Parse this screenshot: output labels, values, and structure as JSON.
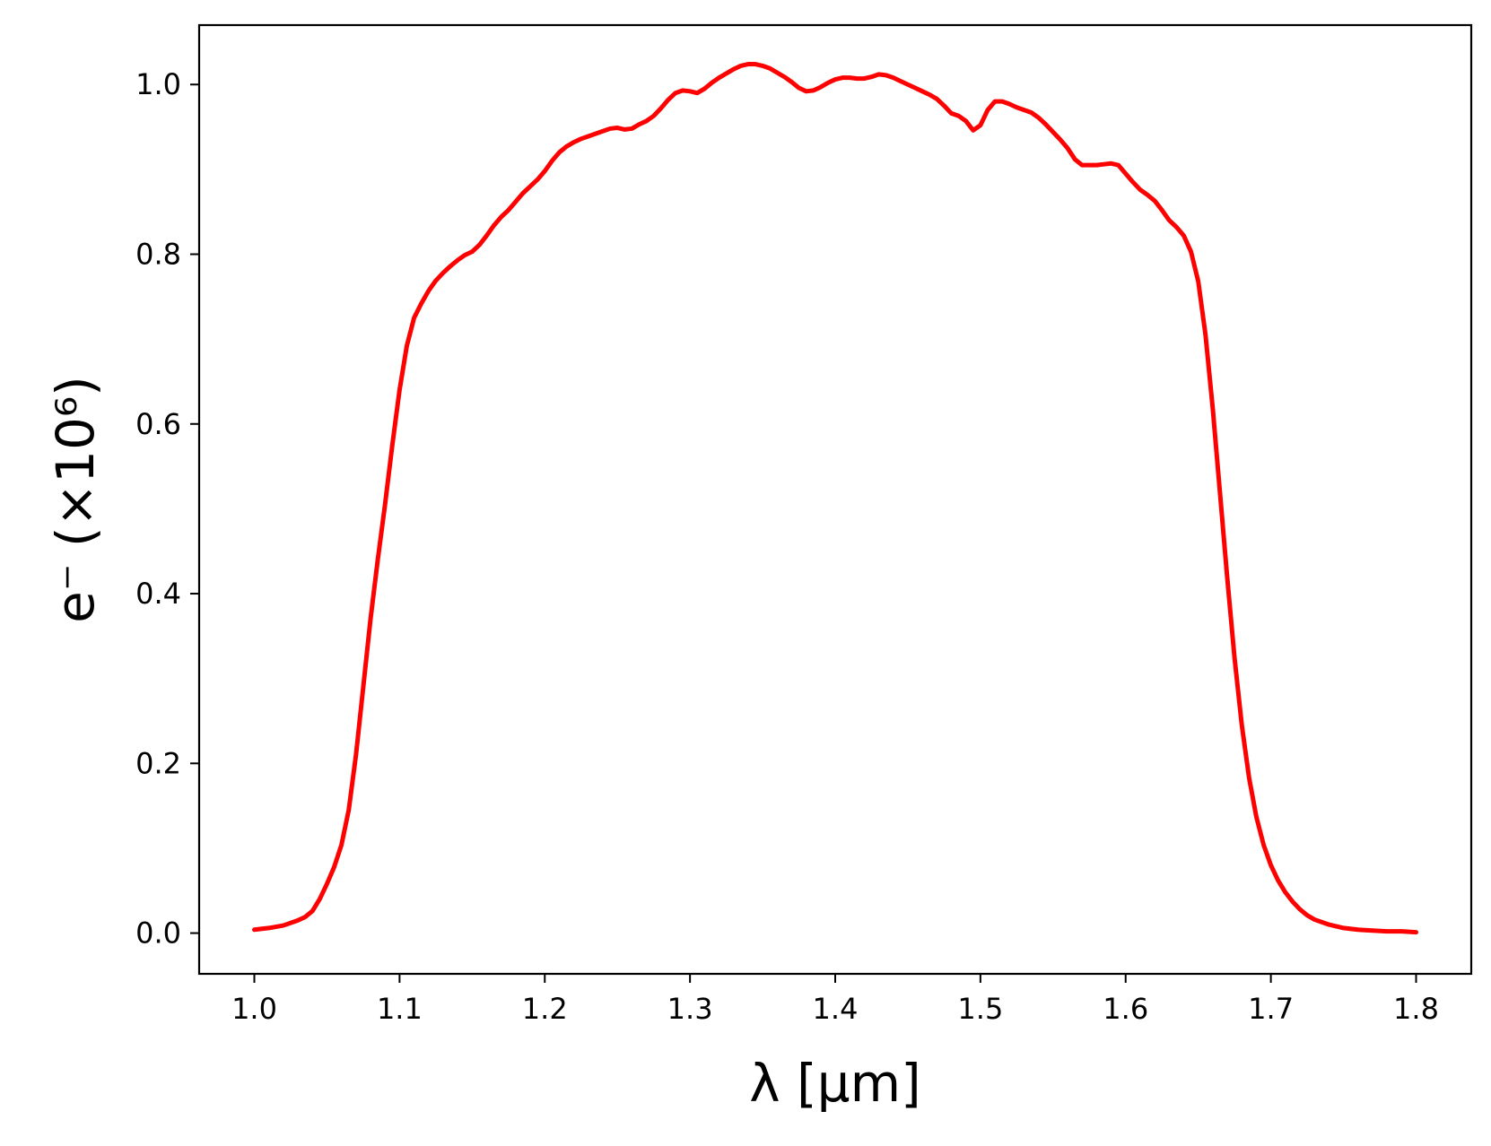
{
  "chart_data": {
    "type": "line",
    "title": "",
    "xlabel": "λ [μm]",
    "ylabel": "e⁻ (×10⁶)",
    "xlim": [
      0.962,
      1.838
    ],
    "ylim": [
      -0.048,
      1.07
    ],
    "xticks": [
      1.0,
      1.1,
      1.2,
      1.3,
      1.4,
      1.5,
      1.6,
      1.7,
      1.8
    ],
    "xtick_labels": [
      "1.0",
      "1.1",
      "1.2",
      "1.3",
      "1.4",
      "1.5",
      "1.6",
      "1.7",
      "1.8"
    ],
    "yticks": [
      0.0,
      0.2,
      0.4,
      0.6,
      0.8,
      1.0
    ],
    "ytick_labels": [
      "0.0",
      "0.2",
      "0.4",
      "0.6",
      "0.8",
      "1.0"
    ],
    "grid": false,
    "series": [
      {
        "color": "#ff0000",
        "points": [
          [
            1.0,
            0.004
          ],
          [
            1.01,
            0.006
          ],
          [
            1.02,
            0.009
          ],
          [
            1.03,
            0.015
          ],
          [
            1.035,
            0.019
          ],
          [
            1.04,
            0.026
          ],
          [
            1.045,
            0.04
          ],
          [
            1.05,
            0.058
          ],
          [
            1.055,
            0.078
          ],
          [
            1.06,
            0.104
          ],
          [
            1.065,
            0.145
          ],
          [
            1.07,
            0.21
          ],
          [
            1.075,
            0.29
          ],
          [
            1.08,
            0.37
          ],
          [
            1.085,
            0.44
          ],
          [
            1.09,
            0.505
          ],
          [
            1.095,
            0.575
          ],
          [
            1.1,
            0.64
          ],
          [
            1.105,
            0.692
          ],
          [
            1.11,
            0.725
          ],
          [
            1.115,
            0.742
          ],
          [
            1.12,
            0.757
          ],
          [
            1.125,
            0.769
          ],
          [
            1.13,
            0.778
          ],
          [
            1.135,
            0.786
          ],
          [
            1.14,
            0.793
          ],
          [
            1.145,
            0.799
          ],
          [
            1.15,
            0.803
          ],
          [
            1.155,
            0.811
          ],
          [
            1.16,
            0.822
          ],
          [
            1.165,
            0.834
          ],
          [
            1.17,
            0.844
          ],
          [
            1.175,
            0.852
          ],
          [
            1.18,
            0.862
          ],
          [
            1.185,
            0.872
          ],
          [
            1.19,
            0.88
          ],
          [
            1.195,
            0.888
          ],
          [
            1.2,
            0.898
          ],
          [
            1.205,
            0.91
          ],
          [
            1.21,
            0.92
          ],
          [
            1.215,
            0.927
          ],
          [
            1.22,
            0.932
          ],
          [
            1.225,
            0.936
          ],
          [
            1.23,
            0.939
          ],
          [
            1.235,
            0.942
          ],
          [
            1.24,
            0.945
          ],
          [
            1.245,
            0.948
          ],
          [
            1.25,
            0.949
          ],
          [
            1.255,
            0.947
          ],
          [
            1.26,
            0.948
          ],
          [
            1.265,
            0.953
          ],
          [
            1.27,
            0.957
          ],
          [
            1.275,
            0.963
          ],
          [
            1.28,
            0.972
          ],
          [
            1.285,
            0.982
          ],
          [
            1.29,
            0.99
          ],
          [
            1.295,
            0.993
          ],
          [
            1.3,
            0.992
          ],
          [
            1.305,
            0.99
          ],
          [
            1.31,
            0.995
          ],
          [
            1.315,
            1.002
          ],
          [
            1.32,
            1.008
          ],
          [
            1.325,
            1.013
          ],
          [
            1.33,
            1.018
          ],
          [
            1.335,
            1.022
          ],
          [
            1.34,
            1.024
          ],
          [
            1.345,
            1.024
          ],
          [
            1.35,
            1.022
          ],
          [
            1.355,
            1.019
          ],
          [
            1.36,
            1.014
          ],
          [
            1.365,
            1.009
          ],
          [
            1.37,
            1.003
          ],
          [
            1.375,
            0.996
          ],
          [
            1.38,
            0.992
          ],
          [
            1.385,
            0.993
          ],
          [
            1.39,
            0.997
          ],
          [
            1.395,
            1.002
          ],
          [
            1.4,
            1.006
          ],
          [
            1.405,
            1.008
          ],
          [
            1.41,
            1.008
          ],
          [
            1.415,
            1.007
          ],
          [
            1.42,
            1.007
          ],
          [
            1.425,
            1.009
          ],
          [
            1.43,
            1.012
          ],
          [
            1.435,
            1.011
          ],
          [
            1.44,
            1.008
          ],
          [
            1.445,
            1.004
          ],
          [
            1.45,
            1.0
          ],
          [
            1.455,
            0.996
          ],
          [
            1.46,
            0.992
          ],
          [
            1.465,
            0.988
          ],
          [
            1.47,
            0.983
          ],
          [
            1.475,
            0.975
          ],
          [
            1.48,
            0.966
          ],
          [
            1.485,
            0.963
          ],
          [
            1.49,
            0.957
          ],
          [
            1.495,
            0.946
          ],
          [
            1.5,
            0.952
          ],
          [
            1.505,
            0.97
          ],
          [
            1.51,
            0.98
          ],
          [
            1.515,
            0.98
          ],
          [
            1.52,
            0.977
          ],
          [
            1.525,
            0.973
          ],
          [
            1.53,
            0.97
          ],
          [
            1.535,
            0.967
          ],
          [
            1.54,
            0.961
          ],
          [
            1.545,
            0.953
          ],
          [
            1.55,
            0.944
          ],
          [
            1.555,
            0.935
          ],
          [
            1.56,
            0.925
          ],
          [
            1.565,
            0.912
          ],
          [
            1.57,
            0.905
          ],
          [
            1.575,
            0.905
          ],
          [
            1.58,
            0.905
          ],
          [
            1.585,
            0.906
          ],
          [
            1.59,
            0.907
          ],
          [
            1.595,
            0.905
          ],
          [
            1.6,
            0.895
          ],
          [
            1.605,
            0.885
          ],
          [
            1.61,
            0.876
          ],
          [
            1.615,
            0.87
          ],
          [
            1.62,
            0.863
          ],
          [
            1.625,
            0.852
          ],
          [
            1.63,
            0.84
          ],
          [
            1.635,
            0.832
          ],
          [
            1.64,
            0.822
          ],
          [
            1.645,
            0.803
          ],
          [
            1.65,
            0.768
          ],
          [
            1.655,
            0.705
          ],
          [
            1.66,
            0.618
          ],
          [
            1.665,
            0.518
          ],
          [
            1.67,
            0.418
          ],
          [
            1.675,
            0.324
          ],
          [
            1.68,
            0.245
          ],
          [
            1.685,
            0.183
          ],
          [
            1.69,
            0.137
          ],
          [
            1.695,
            0.104
          ],
          [
            1.7,
            0.08
          ],
          [
            1.705,
            0.062
          ],
          [
            1.71,
            0.048
          ],
          [
            1.715,
            0.037
          ],
          [
            1.72,
            0.028
          ],
          [
            1.725,
            0.021
          ],
          [
            1.73,
            0.016
          ],
          [
            1.74,
            0.01
          ],
          [
            1.75,
            0.006
          ],
          [
            1.76,
            0.004
          ],
          [
            1.77,
            0.003
          ],
          [
            1.78,
            0.002
          ],
          [
            1.79,
            0.002
          ],
          [
            1.8,
            0.001
          ]
        ]
      }
    ]
  }
}
